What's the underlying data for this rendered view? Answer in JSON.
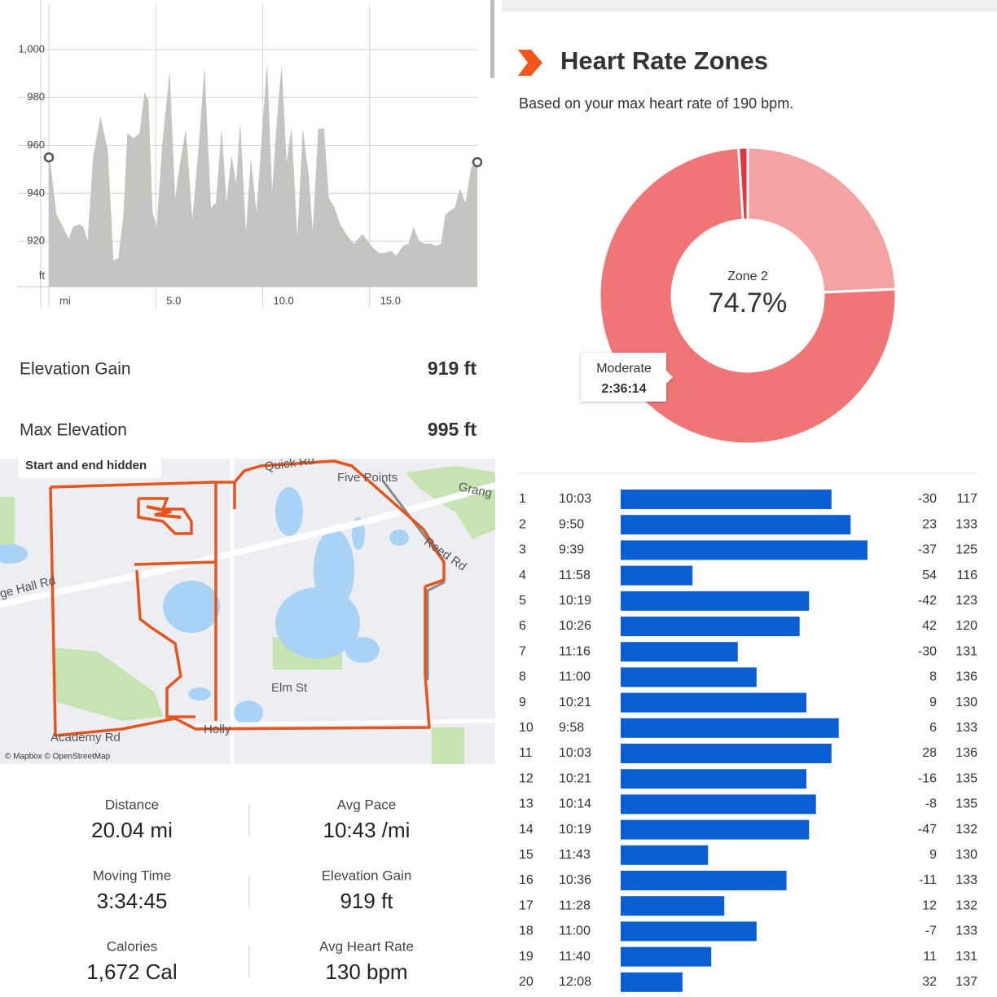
{
  "chart_data": [
    {
      "type": "area",
      "x": [
        0,
        0.06,
        0.36,
        0.66,
        0.93,
        1.12,
        1.43,
        1.62,
        1.81,
        2.07,
        2.41,
        2.76,
        3.02,
        3.25,
        3.48,
        3.67,
        3.97,
        4.24,
        4.47,
        4.66,
        4.85,
        5.04,
        5.3,
        5.65,
        5.91,
        6.14,
        6.41,
        6.71,
        7.01,
        7.28,
        7.58,
        7.81,
        8.08,
        8.31,
        8.54,
        8.76,
        8.95,
        9.22,
        9.45,
        9.71,
        9.98,
        10.21,
        10.44,
        10.66,
        10.89,
        11.12,
        11.35,
        11.62,
        11.88,
        12.15,
        12.34,
        12.6,
        12.87,
        13.1,
        13.36,
        13.63,
        13.97,
        14.28,
        14.66,
        14.92,
        15.19,
        15.46,
        15.72,
        15.99,
        16.25,
        16.56,
        16.82,
        17.05,
        17.32,
        17.58,
        17.85,
        18.12,
        18.35,
        18.54,
        18.8,
        18.99,
        19.22,
        19.49,
        19.75,
        20.04
      ],
      "values": [
        955,
        953,
        931,
        926,
        921,
        926,
        927,
        926,
        920,
        955,
        972,
        958,
        912,
        913,
        930,
        965,
        963,
        965,
        982,
        979,
        932,
        926,
        960,
        991,
        938,
        953,
        967,
        929,
        960,
        993,
        934,
        936,
        967,
        936,
        956,
        944,
        970,
        924,
        955,
        932,
        967,
        995,
        941,
        970,
        994,
        953,
        968,
        922,
        967,
        948,
        924,
        967,
        967,
        938,
        934,
        927,
        922,
        919,
        923,
        920,
        917,
        915,
        915,
        916,
        914,
        918,
        919,
        926,
        920,
        919,
        919,
        918,
        919,
        931,
        933,
        934,
        942,
        936,
        951,
        953
      ],
      "color": "#c5c4be",
      "xlim": [
        0,
        20.04
      ],
      "ylim": [
        901,
        1019
      ],
      "xticks": [
        {
          "value": 0,
          "label": "mi"
        },
        {
          "value": 5,
          "label": "5.0"
        },
        {
          "value": 10,
          "label": "10.0"
        },
        {
          "value": 15,
          "label": "15.0"
        }
      ],
      "yticks": [
        920,
        940,
        960,
        980,
        {
          "value": 1000,
          "label": "1,000"
        }
      ],
      "y_label": "ft",
      "grid": true
    },
    {
      "type": "donut",
      "title": "Heart Rate Zones",
      "subtitle": "Based on your max heart rate of 190 bpm.",
      "categories": [
        null,
        null,
        "Zone 2"
      ],
      "values": [
        1.0,
        24.3,
        74.7
      ],
      "value_labels": [
        null,
        null,
        "74.7%"
      ],
      "colors": [
        "#e0373f",
        "#f4a3a3",
        "#ef7576"
      ],
      "tooltip": {
        "label": "Moderate",
        "value": "2:36:14"
      }
    },
    {
      "type": "bar",
      "orientation": "horizontal",
      "categories": [
        "1",
        "2",
        "3",
        "4",
        "5",
        "6",
        "7",
        "8",
        "9",
        "10",
        "11",
        "12",
        "13",
        "14",
        "15",
        "16",
        "17",
        "18",
        "19",
        "20"
      ],
      "values": [
        603,
        590,
        579,
        718,
        619,
        626,
        676,
        660,
        621,
        598,
        603,
        621,
        614,
        619,
        703,
        636,
        688,
        660,
        700,
        728
      ],
      "value_labels": [
        "10:03",
        "9:50",
        "9:39",
        "11:58",
        "10:19",
        "10:26",
        "11:16",
        "11:00",
        "10:21",
        "9:58",
        "10:03",
        "10:21",
        "10:14",
        "10:19",
        "11:43",
        "10:36",
        "11:28",
        "11:00",
        "11:40",
        "12:08"
      ],
      "color": "#0a5fd2",
      "elevation": [
        -30,
        23,
        -37,
        54,
        -42,
        42,
        -30,
        8,
        9,
        6,
        28,
        -16,
        -8,
        -47,
        9,
        -11,
        12,
        -7,
        11,
        32
      ],
      "heart_rate": [
        117,
        133,
        125,
        116,
        123,
        120,
        131,
        136,
        130,
        133,
        136,
        135,
        135,
        132,
        130,
        133,
        132,
        133,
        131,
        137
      ]
    }
  ],
  "elevation_stats": [
    {
      "label": "Elevation Gain",
      "value": "919 ft"
    },
    {
      "label": "Max Elevation",
      "value": "995 ft"
    }
  ],
  "map": {
    "notice": "Start and end hidden",
    "labels": [
      "Quick Rd",
      "Five Points",
      "Grang",
      "Reed Rd",
      "ge Hall Rd",
      "Elm St",
      "Holly",
      "Academy Rd"
    ],
    "attribution": "© Mapbox © OpenStreetMap"
  },
  "stats": [
    {
      "label": "Distance",
      "value": "20.04 mi"
    },
    {
      "label": "Avg Pace",
      "value": "10:43 /mi"
    },
    {
      "label": "Moving Time",
      "value": "3:34:45"
    },
    {
      "label": "Elevation Gain",
      "value": "919 ft"
    },
    {
      "label": "Calories",
      "value": "1,672 Cal"
    },
    {
      "label": "Avg Heart Rate",
      "value": "130 bpm"
    }
  ]
}
